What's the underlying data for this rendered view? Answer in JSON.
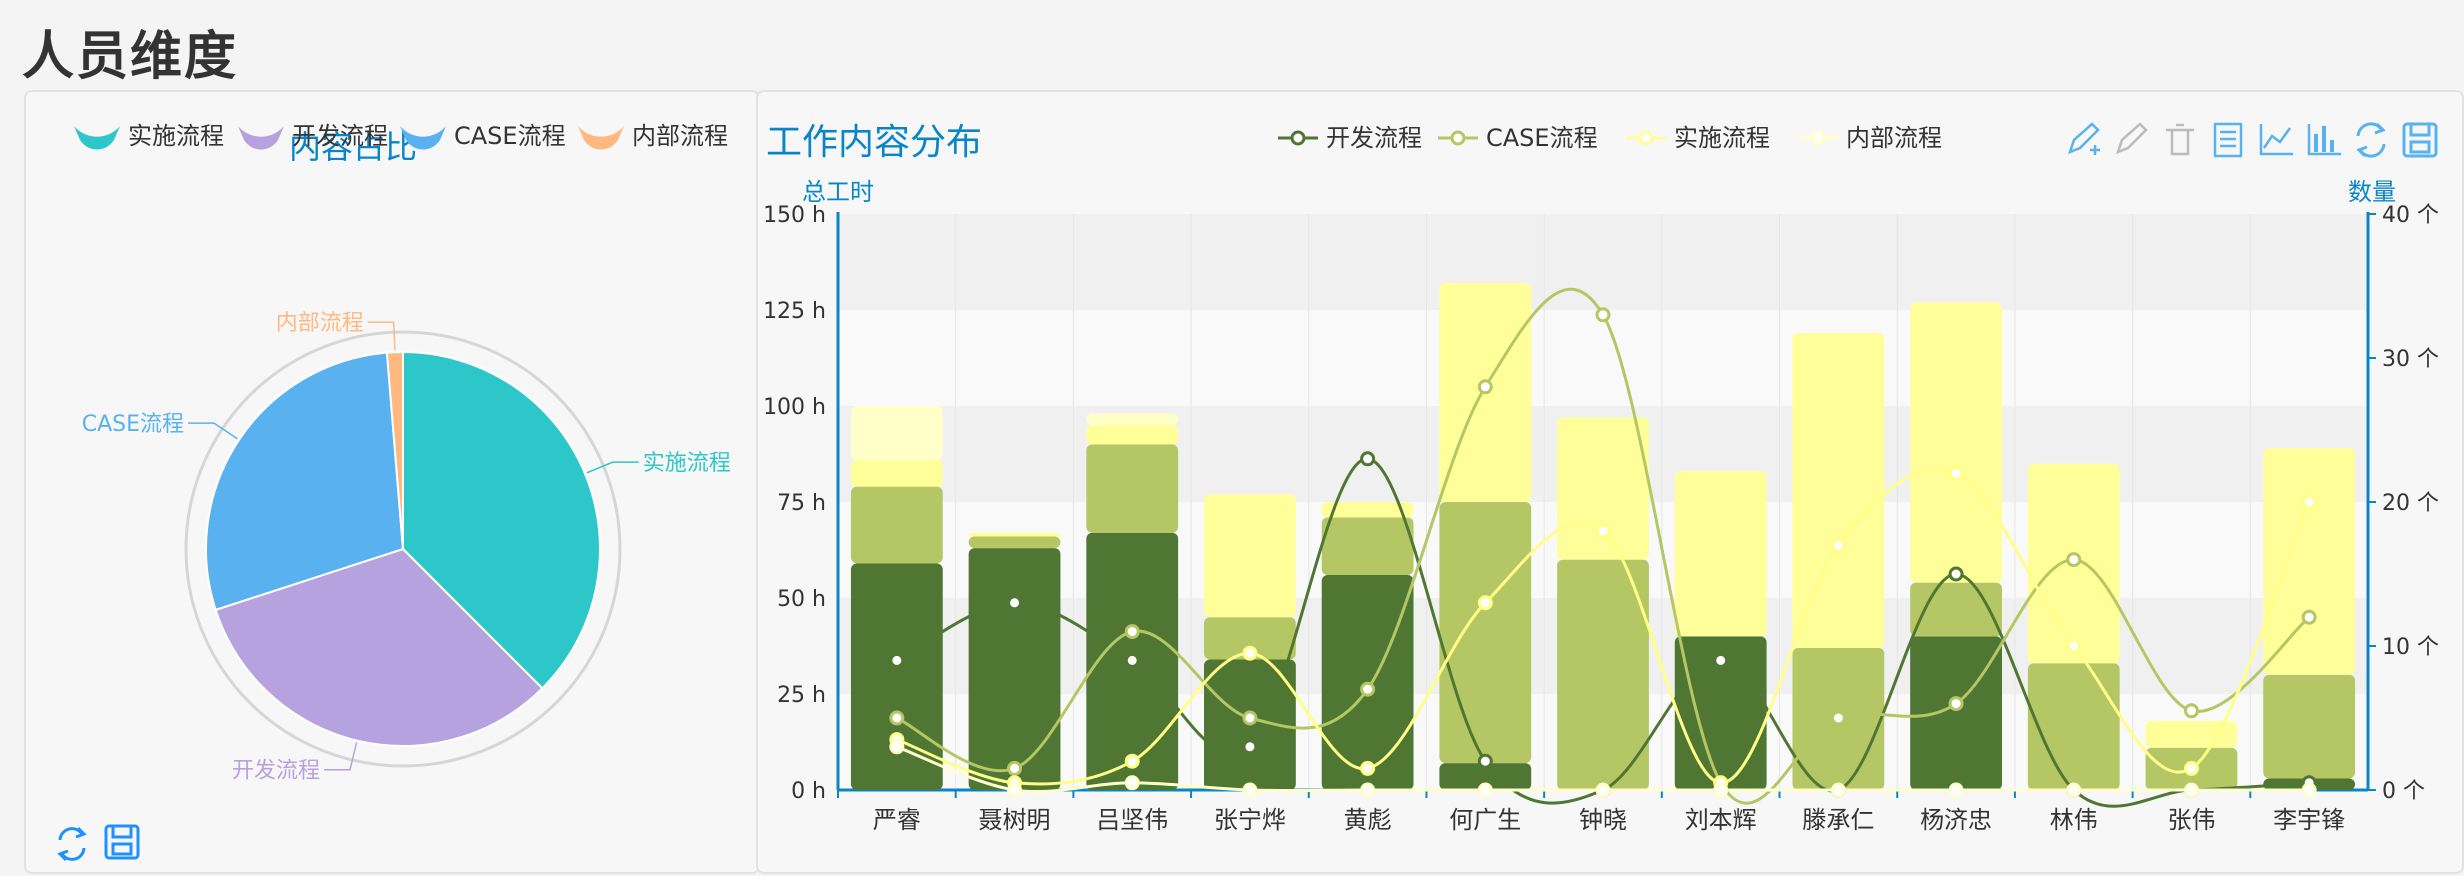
{
  "page": {
    "title": "人员维度"
  },
  "pie_chart": {
    "title": "内容占比",
    "legend": [
      {
        "name": "实施流程",
        "color": "#2ec7c9"
      },
      {
        "name": "开发流程",
        "color": "#b6a2de"
      },
      {
        "name": "CASE流程",
        "color": "#5ab1ef"
      },
      {
        "name": "内部流程",
        "color": "#ffb980"
      }
    ],
    "toolbox": [
      "restore-icon",
      "save-image-icon"
    ]
  },
  "bar_chart": {
    "title": "工作内容分布",
    "legend": [
      {
        "name": "开发流程",
        "color": "#4f7733"
      },
      {
        "name": "CASE流程",
        "color": "#b5c765"
      },
      {
        "name": "实施流程",
        "color": "#ffff99"
      },
      {
        "name": "内部流程",
        "color": "#ffffc8"
      }
    ],
    "toolbox": [
      "mark-icon",
      "mark-undo-icon",
      "mark-clear-icon",
      "data-view-icon",
      "line-type-icon",
      "bar-type-icon",
      "restore-icon",
      "save-image-icon"
    ]
  },
  "chart_data": [
    {
      "type": "pie",
      "title": "内容占比",
      "labels": [
        "实施流程",
        "开发流程",
        "CASE流程",
        "内部流程"
      ],
      "values": [
        37.5,
        32.5,
        28.7,
        1.3
      ],
      "unit": "%",
      "colors": [
        "#2ec7c9",
        "#b6a2de",
        "#5ab1ef",
        "#ffb980"
      ],
      "legend_position": "top"
    },
    {
      "type": "bar",
      "title": "工作内容分布",
      "categories": [
        "严睿",
        "聂树明",
        "吕坚伟",
        "张宁烨",
        "黄彪",
        "何广生",
        "钟晓",
        "刘本辉",
        "滕承仁",
        "杨济忠",
        "林伟",
        "张伟",
        "李宇锋"
      ],
      "y_left": {
        "label": "总工时",
        "ticks": [
          "0 h",
          "25 h",
          "50 h",
          "75 h",
          "100 h",
          "125 h",
          "150 h"
        ],
        "range": [
          0,
          150
        ]
      },
      "y_right": {
        "label": "数量",
        "ticks": [
          "0 个",
          "10 个",
          "20 个",
          "30 个",
          "40 个"
        ],
        "range": [
          0,
          40
        ]
      },
      "bar_series": [
        {
          "name": "开发流程",
          "color": "#4f7733",
          "values": [
            59,
            63,
            67,
            34,
            56,
            7,
            0,
            40,
            0,
            40,
            0,
            0,
            3
          ]
        },
        {
          "name": "CASE流程",
          "color": "#b5c765",
          "values": [
            20,
            3,
            23,
            11,
            15,
            68,
            60,
            0,
            37,
            14,
            33,
            11,
            27
          ]
        },
        {
          "name": "实施流程",
          "color": "#ffff99",
          "values": [
            7,
            1,
            5,
            32,
            4,
            57,
            37,
            43,
            82,
            73,
            52,
            7,
            59
          ]
        },
        {
          "name": "内部流程",
          "color": "#ffffc8",
          "values": [
            14,
            0,
            3,
            0,
            0,
            0,
            0,
            0,
            0,
            0,
            0,
            0,
            0
          ]
        }
      ],
      "line_series": [
        {
          "name": "开发流程",
          "color": "#4f7733",
          "values": [
            9,
            13,
            9,
            3,
            23,
            2,
            0,
            9,
            0,
            15,
            0,
            0,
            0.5
          ]
        },
        {
          "name": "CASE流程",
          "color": "#b5c765",
          "values": [
            5,
            1.5,
            11,
            5,
            7,
            28,
            33,
            0.5,
            5,
            6,
            16,
            5.5,
            12
          ]
        },
        {
          "name": "实施流程",
          "color": "#ffff88",
          "values": [
            3.5,
            0.5,
            2,
            9.5,
            1.5,
            13,
            18,
            0.5,
            17,
            22,
            10,
            1.5,
            20
          ]
        },
        {
          "name": "内部流程",
          "color": "#ffffcc",
          "values": [
            3,
            0,
            0.5,
            0,
            0,
            0,
            0,
            0,
            0,
            0,
            0,
            0,
            0
          ]
        }
      ]
    }
  ]
}
